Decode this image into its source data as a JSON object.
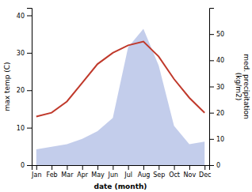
{
  "chart_data": {
    "type": "line",
    "x_label": "date (month)",
    "y_label": "max temp (C)",
    "y2_label": "med. precipitation\n(kg/m2)",
    "categories": [
      "Jan",
      "Feb",
      "Mar",
      "Apr",
      "May",
      "Jun",
      "Jul",
      "Aug",
      "Sep",
      "Oct",
      "Nov",
      "Dec"
    ],
    "series": [
      {
        "type": "area",
        "axis": "y2",
        "color": "#b8c4e8",
        "values": [
          6,
          7,
          8,
          10,
          13,
          18,
          45,
          52,
          38,
          15,
          8,
          9
        ]
      },
      {
        "type": "line",
        "color": "#c0392b",
        "values": [
          13,
          14,
          17,
          22,
          27,
          30,
          32,
          33,
          29,
          23,
          18,
          14
        ]
      }
    ],
    "ylim": [
      0,
      42
    ],
    "yticks": [
      0,
      10,
      20,
      30,
      40
    ],
    "y2lim": [
      0,
      60
    ],
    "y2ticks": [
      0,
      10,
      20,
      30,
      40,
      50
    ],
    "grid": false
  }
}
